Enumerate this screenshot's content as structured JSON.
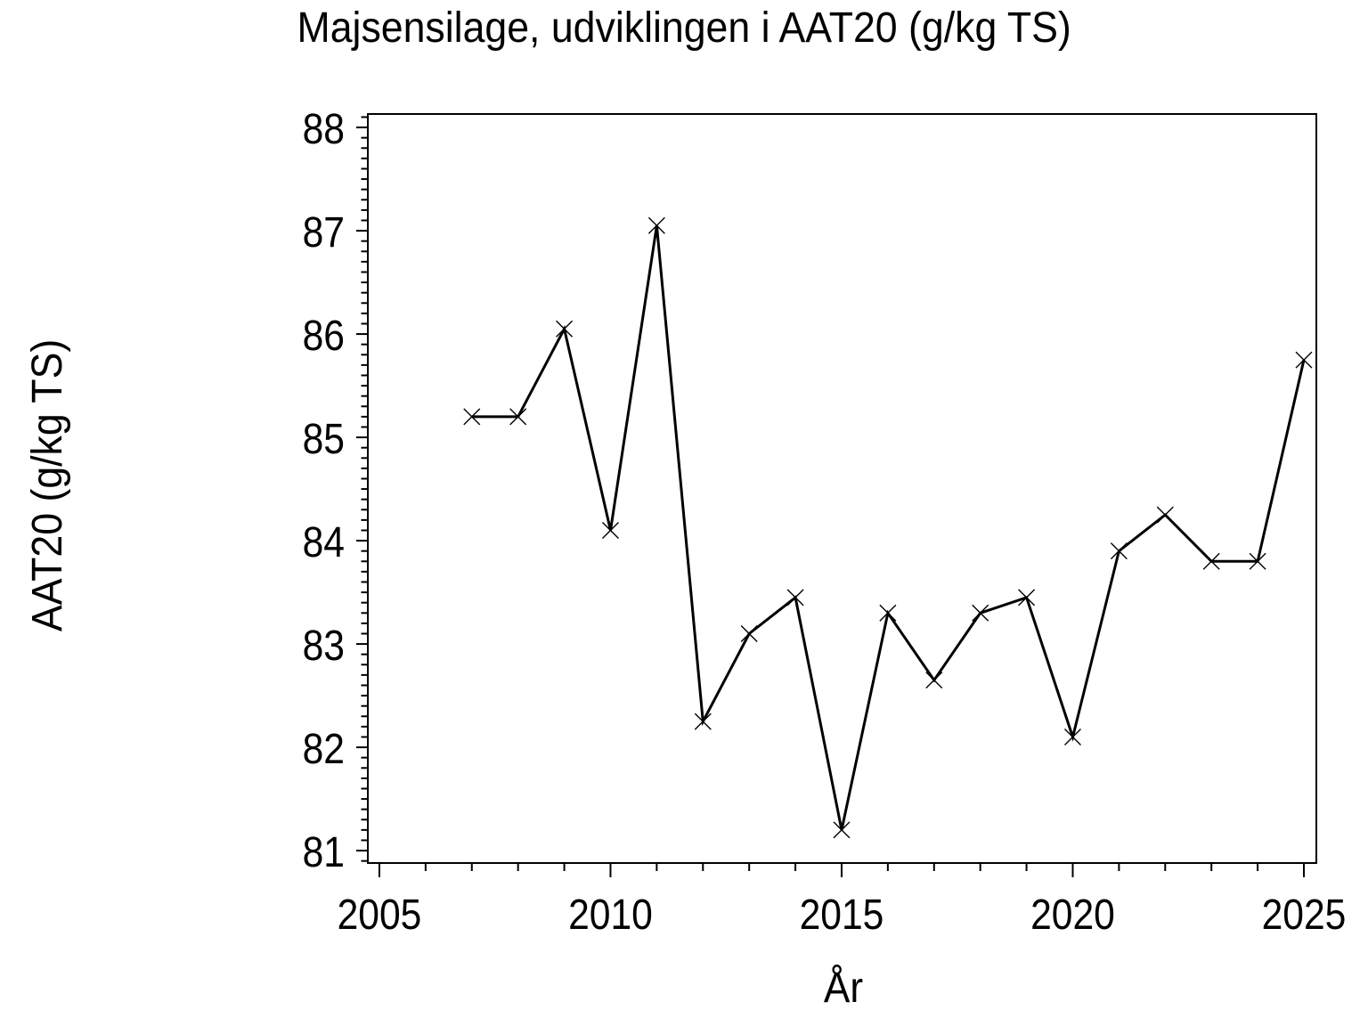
{
  "chart_data": {
    "type": "line",
    "title": "Majsensilage, udviklingen i AAT20 (g/kg TS)",
    "xlabel": "År",
    "ylabel": "AAT20 (g/kg TS)",
    "x": [
      2007,
      2008,
      2009,
      2010,
      2011,
      2012,
      2013,
      2014,
      2015,
      2016,
      2017,
      2018,
      2019,
      2020,
      2021,
      2022,
      2023,
      2024,
      2025
    ],
    "values": [
      85.2,
      85.2,
      86.05,
      84.1,
      87.05,
      82.25,
      83.1,
      83.45,
      81.2,
      83.3,
      82.65,
      83.3,
      83.45,
      82.1,
      83.9,
      84.25,
      83.8,
      83.8,
      85.75
    ],
    "series_name": "AAT20",
    "marker": "x",
    "grid": false,
    "legend_position": "none",
    "xlim": [
      2004.75,
      2025.27
    ],
    "ylim": [
      80.88,
      88.13
    ],
    "x_major_ticks": [
      2005,
      2010,
      2015,
      2020,
      2025
    ],
    "x_tick_labels": [
      "2005",
      "2010",
      "2015",
      "2020",
      "2025"
    ],
    "x_minor_tick_step": 1,
    "y_major_ticks": [
      81,
      82,
      83,
      84,
      85,
      86,
      87,
      88
    ],
    "y_tick_labels": [
      "81",
      "82",
      "83",
      "84",
      "85",
      "86",
      "87",
      "88"
    ],
    "y_minor_tick_step": 0.1,
    "line_color": "#000000",
    "marker_color": "#000000",
    "axis_color": "#000000",
    "text_color": "#000000",
    "background": "#ffffff"
  }
}
